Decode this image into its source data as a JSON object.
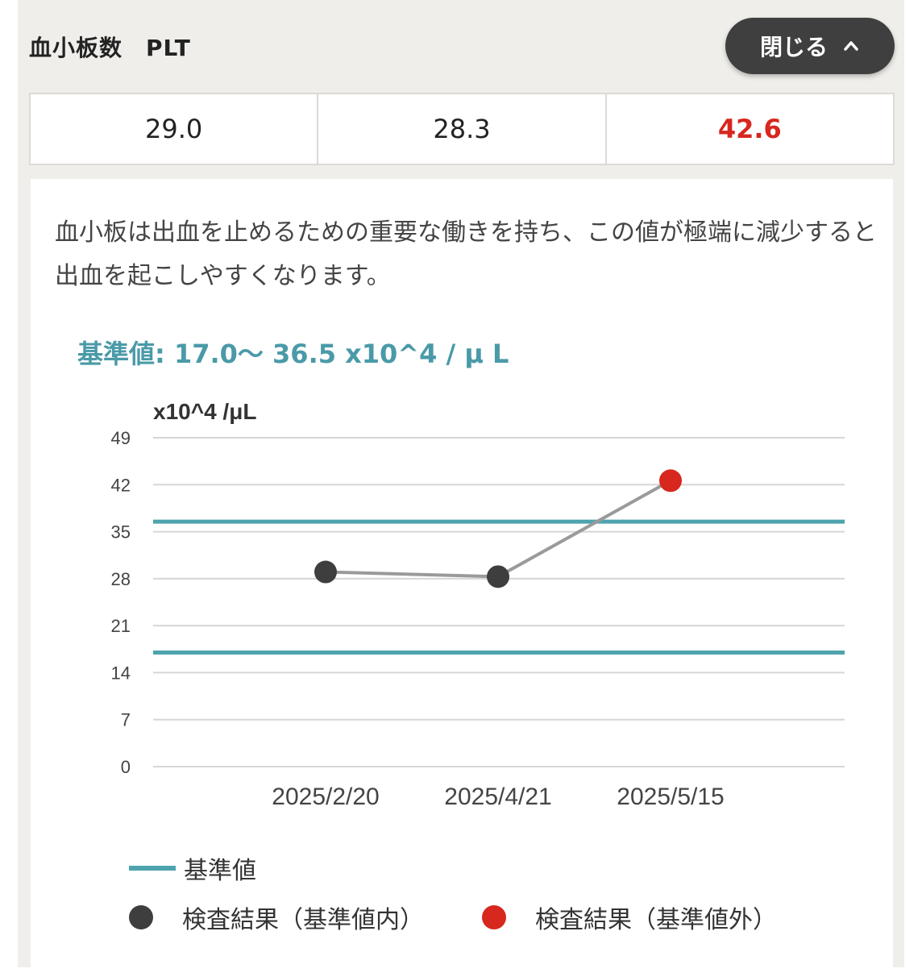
{
  "header": {
    "title": "血小板数　PLT",
    "close_label": "閉じる"
  },
  "values": [
    {
      "text": "29.0",
      "status": "normal"
    },
    {
      "text": "28.3",
      "status": "normal"
    },
    {
      "text": "42.6",
      "status": "out"
    }
  ],
  "description": "血小板は出血を止めるための重要な働きを持ち、この値が極端に減少すると出血を起こしやすくなります。",
  "reference_text": "基準値: 17.0〜 36.5 x10^4 / μ L",
  "legend": {
    "reference": "基準値",
    "in_range": "検査結果（基準値内）",
    "out_of_range": "検査結果（基準値外）"
  },
  "colors": {
    "reference_line": "#4ea4ae",
    "in_range_point": "#3e3e3e",
    "out_range_point": "#d7271e",
    "series_line": "#9a9a9a",
    "accent_text": "#4a9aa8"
  },
  "chart_data": {
    "type": "line",
    "ylabel": "x10^4 /μL",
    "yticks": [
      0,
      7,
      14,
      21,
      28,
      35,
      42,
      49
    ],
    "ylim": [
      0,
      49
    ],
    "categories": [
      "2025/2/20",
      "2025/4/21",
      "2025/5/15"
    ],
    "values": [
      29.0,
      28.3,
      42.6
    ],
    "statuses": [
      "in",
      "in",
      "out"
    ],
    "reference_range": [
      17.0,
      36.5
    ],
    "grid": true,
    "legend_position": "bottom"
  }
}
